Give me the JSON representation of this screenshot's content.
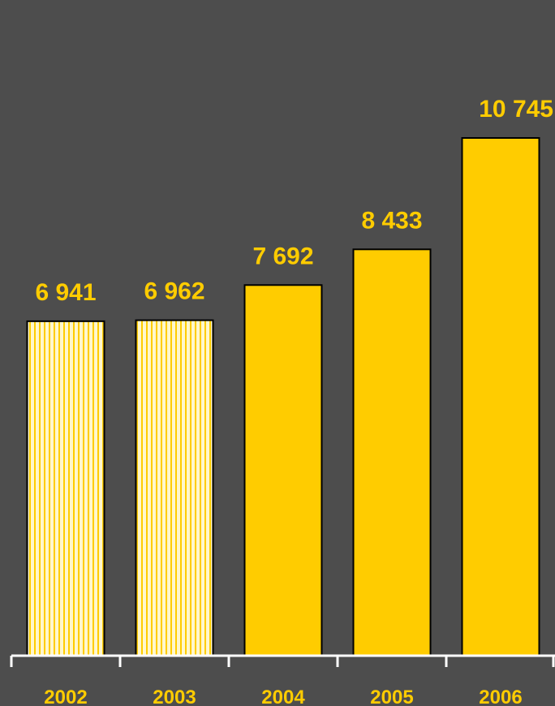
{
  "chart_data": {
    "type": "bar",
    "title": "",
    "xlabel": "",
    "ylabel": "",
    "categories": [
      "2002",
      "2003",
      "2004",
      "2005",
      "2006"
    ],
    "values": [
      6941,
      6962,
      7692,
      8433,
      10745
    ],
    "value_labels": [
      "6 941",
      "6 962",
      "7 692",
      "8 433",
      "10 745"
    ],
    "bar_styles": [
      "striped",
      "striped",
      "solid",
      "solid",
      "solid"
    ],
    "ylim": [
      0,
      12000
    ],
    "grid": false,
    "legend": "none"
  },
  "colors": {
    "background": "#4d4d4d",
    "bar_fill": "#ffcc00",
    "bar_stripe_light": "#fff7cc",
    "bar_outline": "#000000",
    "label_text": "#ffcc00",
    "axis": "#ffffff"
  }
}
